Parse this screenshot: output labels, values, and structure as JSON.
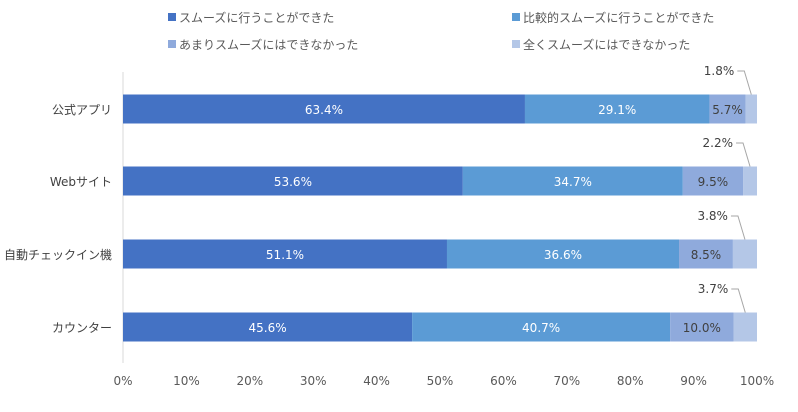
{
  "chart_data": {
    "type": "bar",
    "orientation": "horizontal",
    "stacked": true,
    "categories": [
      "公式アプリ",
      "Webサイト",
      "自動チェックイン機",
      "カウンター"
    ],
    "series": [
      {
        "name": "スムーズに行うことができた",
        "color": "#4472C4",
        "values": [
          63.4,
          53.6,
          51.1,
          45.6
        ]
      },
      {
        "name": "比較的スムーズに行うことができた",
        "color": "#5B9BD5",
        "values": [
          29.1,
          34.7,
          36.6,
          40.7
        ]
      },
      {
        "name": "あまりスムーズにはできなかった",
        "color": "#8FAADC",
        "values": [
          5.7,
          9.5,
          8.5,
          10.0
        ]
      },
      {
        "name": "全くスムーズにはできなかった",
        "color": "#B4C7E7",
        "values": [
          1.8,
          2.2,
          3.8,
          3.7
        ]
      }
    ],
    "xlim": [
      0,
      100
    ],
    "xticks": [
      "0%",
      "10%",
      "20%",
      "30%",
      "40%",
      "50%",
      "60%",
      "70%",
      "80%",
      "90%",
      "100%"
    ],
    "legend": "top",
    "grid": false
  }
}
